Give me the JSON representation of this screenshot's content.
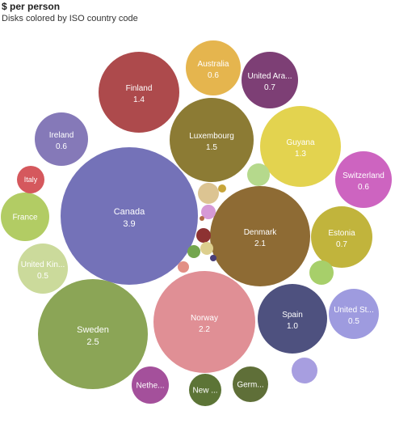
{
  "chart_data": {
    "type": "bubble",
    "title": "$ per person",
    "subtitle": "Disks colored by ISO country code",
    "value_unit": "$ per person",
    "bubbles": [
      {
        "label": "Canada",
        "value_label": "3.9",
        "value": 3.9,
        "color": "#7472b8"
      },
      {
        "label": "Sweden",
        "value_label": "2.5",
        "value": 2.5,
        "color": "#8ba556"
      },
      {
        "label": "Norway",
        "value_label": "2.2",
        "value": 2.2,
        "color": "#e08f95"
      },
      {
        "label": "Denmark",
        "value_label": "2.1",
        "value": 2.1,
        "color": "#8e6b34"
      },
      {
        "label": "Luxembourg",
        "value_label": "1.5",
        "value": 1.5,
        "color": "#8c7b34"
      },
      {
        "label": "Finland",
        "value_label": "1.4",
        "value": 1.4,
        "color": "#ad4a4c"
      },
      {
        "label": "Guyana",
        "value_label": "1.3",
        "value": 1.3,
        "color": "#e3d34f"
      },
      {
        "label": "Spain",
        "value_label": "1.0",
        "value": 1.0,
        "color": "#4e517f"
      },
      {
        "label": "Estonia",
        "value_label": "0.7",
        "value": 0.7,
        "color": "#c1b43c"
      },
      {
        "label": "United Ara...",
        "value_label": "0.7",
        "value": 0.7,
        "color": "#7d3f75"
      },
      {
        "label": "Australia",
        "value_label": "0.6",
        "value": 0.6,
        "color": "#e5b54e"
      },
      {
        "label": "Ireland",
        "value_label": "0.6",
        "value": 0.6,
        "color": "#8579b8"
      },
      {
        "label": "Switzerland",
        "value_label": "0.6",
        "value": 0.6,
        "color": "#cd64c0"
      },
      {
        "label": "United Kin...",
        "value_label": "0.5",
        "value": 0.5,
        "color": "#cbda9b"
      },
      {
        "label": "United St...",
        "value_label": "0.5",
        "value": 0.5,
        "color": "#9e9bdf"
      },
      {
        "label": "France",
        "value_label": "",
        "value": null,
        "color": "#b2cc64"
      },
      {
        "label": "Nethe...",
        "value_label": "",
        "value": null,
        "color": "#a4509b"
      },
      {
        "label": "Germ...",
        "value_label": "",
        "value": null,
        "color": "#5f6f38"
      },
      {
        "label": "New ...",
        "value_label": "",
        "value": null,
        "color": "#5c7436"
      },
      {
        "label": "Italy",
        "value_label": "",
        "value": null,
        "color": "#d5585d"
      },
      {
        "label": "",
        "value_label": "",
        "value": null,
        "color": "#b5d98c"
      },
      {
        "label": "",
        "value_label": "",
        "value": null,
        "color": "#a7cf6a"
      },
      {
        "label": "",
        "value_label": "",
        "value": null,
        "color": "#a79ee0"
      },
      {
        "label": "",
        "value_label": "",
        "value": null,
        "color": "#dcc492"
      },
      {
        "label": "",
        "value_label": "",
        "value": null,
        "color": "#d699d6"
      },
      {
        "label": "",
        "value_label": "",
        "value": null,
        "color": "#8d3232"
      },
      {
        "label": "",
        "value_label": "",
        "value": null,
        "color": "#ddcf8e"
      },
      {
        "label": "",
        "value_label": "",
        "value": null,
        "color": "#73a64e"
      },
      {
        "label": "",
        "value_label": "",
        "value": null,
        "color": "#e28f85"
      },
      {
        "label": "",
        "value_label": "",
        "value": null,
        "color": "#c7a53a"
      },
      {
        "label": "",
        "value_label": "",
        "value": null,
        "color": "#4a3f7a"
      },
      {
        "label": "",
        "value_label": "",
        "value": null,
        "color": "#b36a48"
      }
    ]
  }
}
